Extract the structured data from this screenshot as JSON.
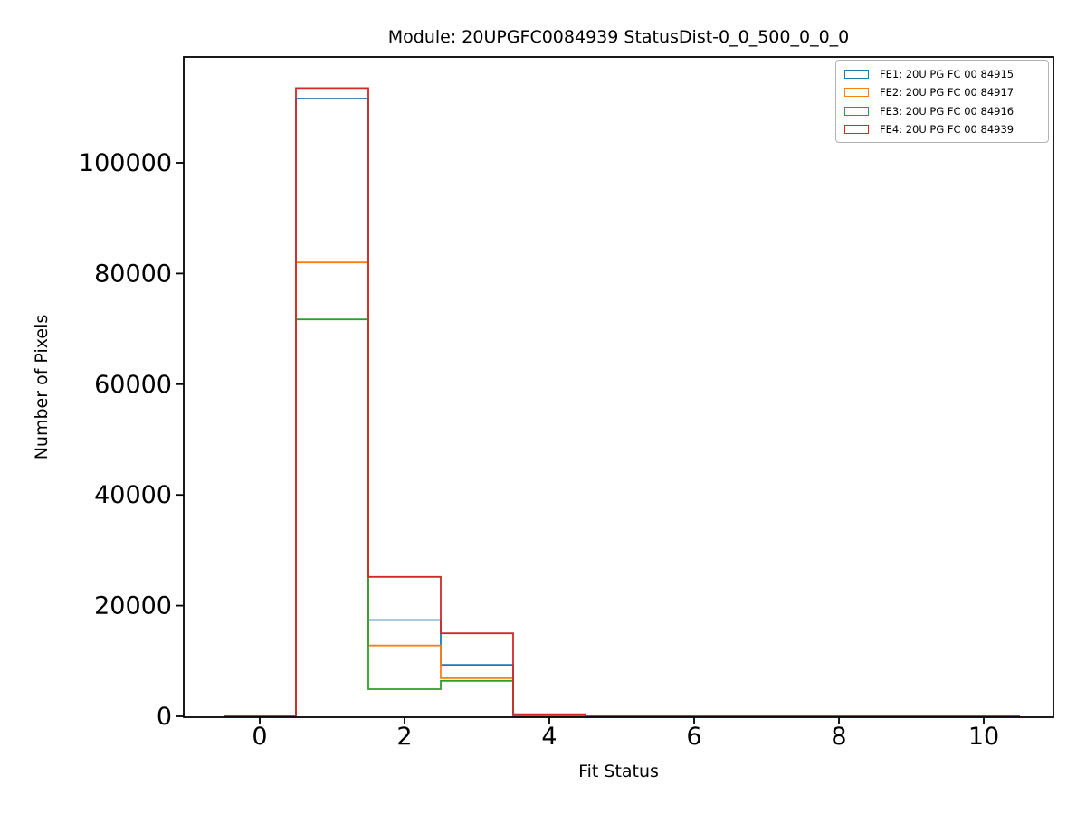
{
  "figure": {
    "background": "#ffffff",
    "axes_edge_color": "#000000"
  },
  "chart_data": {
    "type": "step-histogram",
    "title": "Module: 20UPGFC0084939 StatusDist-0_0_500_0_0_0",
    "xlabel": "Fit Status",
    "ylabel": "Number of Pixels",
    "grid": false,
    "legend_position": "upper right",
    "bin_edges": [
      -0.5,
      0.5,
      1.5,
      2.5,
      3.5,
      4.5,
      5.5,
      6.5,
      7.5,
      8.5,
      9.5,
      10.5
    ],
    "bin_centers": [
      0,
      1,
      2,
      3,
      4,
      5,
      6,
      7,
      8,
      9,
      10
    ],
    "series": [
      {
        "name": "FE1: 20U PG FC 00 84915",
        "color": "#1f77b4",
        "values": [
          0,
          111600,
          17400,
          9300,
          100,
          0,
          0,
          0,
          0,
          0,
          0
        ]
      },
      {
        "name": "FE2: 20U PG FC 00 84917",
        "color": "#ff7f0e",
        "values": [
          0,
          82000,
          12800,
          6900,
          100,
          0,
          0,
          0,
          0,
          0,
          0
        ]
      },
      {
        "name": "FE3: 20U PG FC 00 84916",
        "color": "#2ca02c",
        "values": [
          0,
          71700,
          4900,
          6400,
          100,
          0,
          0,
          0,
          0,
          0,
          0
        ]
      },
      {
        "name": "FE4: 20U PG FC 00 84939",
        "color": "#d62728",
        "values": [
          0,
          113500,
          25200,
          15000,
          400,
          0,
          0,
          0,
          0,
          0,
          0
        ]
      }
    ],
    "xlim": [
      -1.05,
      10.96
    ],
    "ylim": [
      0,
      119000
    ],
    "xticks": {
      "values": [
        0,
        2,
        4,
        6,
        8,
        10
      ],
      "labels": [
        "0",
        "2",
        "4",
        "6",
        "8",
        "10"
      ]
    },
    "yticks": {
      "values": [
        0,
        20000,
        40000,
        60000,
        80000,
        100000
      ],
      "labels": [
        "0",
        "20000",
        "40000",
        "60000",
        "80000",
        "100000"
      ]
    }
  },
  "legend": {
    "items": [
      {
        "label": "FE1: 20U PG FC 00 84915",
        "color": "#1f77b4"
      },
      {
        "label": "FE2: 20U PG FC 00 84917",
        "color": "#ff7f0e"
      },
      {
        "label": "FE3: 20U PG FC 00 84916",
        "color": "#2ca02c"
      },
      {
        "label": "FE4: 20U PG FC 00 84939",
        "color": "#d62728"
      }
    ]
  }
}
